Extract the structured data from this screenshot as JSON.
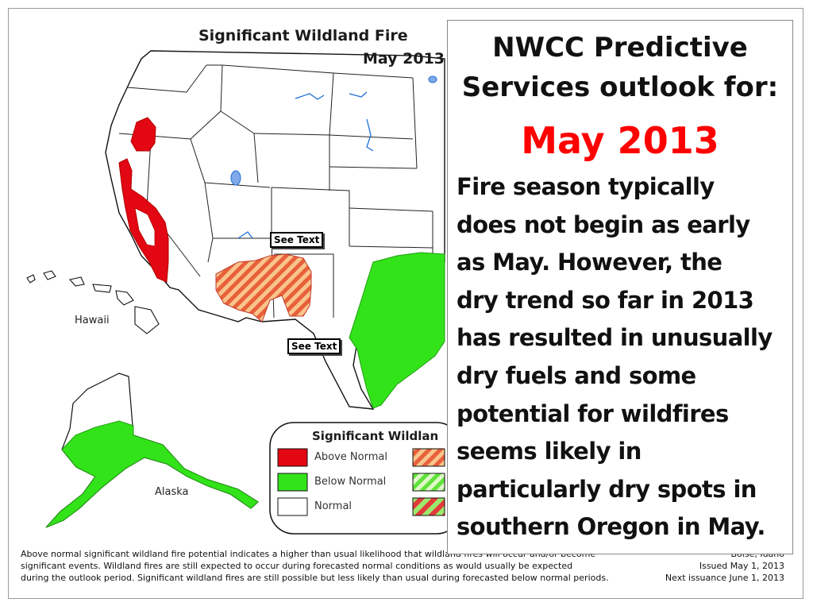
{
  "map": {
    "title_line1": "Significant Wildland Fire",
    "title_line2": "May 2013",
    "region_labels": {
      "hawaii": "Hawaii",
      "alaska": "Alaska"
    },
    "see_text_callouts": [
      "See Text",
      "See Text"
    ],
    "colors": {
      "above_normal": "#e30613",
      "below_normal": "#33e31a",
      "normal": "#ffffff",
      "hatch_above": "#f6a05a",
      "hatch_below": "#9ce96b",
      "water": "#1f6fd6",
      "border": "#111111"
    }
  },
  "legend": {
    "title": "Significant Wildlan",
    "items": [
      {
        "label": "Above Normal",
        "swatch": "above_normal"
      },
      {
        "label": "Below Normal",
        "swatch": "below_normal"
      },
      {
        "label": "Normal",
        "swatch": "normal"
      }
    ]
  },
  "footer": {
    "line1": "Above normal significant wildland fire potential indicates a higher than usual likelihood that wildland fires will occur and/or become",
    "line2": "significant events.  Wildland fires are still expected to occur during forecasted normal conditions as would usually be expected",
    "line3": "during the outlook period.  Significant wildland fires are still possible but less likely than usual during forecasted below normal periods."
  },
  "issue": {
    "place": "Boise, Idaho",
    "issued": "Issued May 1, 2013",
    "next": "Next issuance June 1, 2013"
  },
  "info_box": {
    "heading_line1": "NWCC Predictive",
    "heading_line2": "Services outlook for:",
    "month": "May 2013",
    "body_lines": [
      "Fire season typically",
      "does not begin as early",
      "as May. However, the",
      "dry trend so far in 2013",
      "has resulted in unusually",
      "dry fuels and some",
      "potential for wildfires",
      "seems likely in",
      "particularly dry spots in",
      "southern Oregon in May."
    ]
  }
}
